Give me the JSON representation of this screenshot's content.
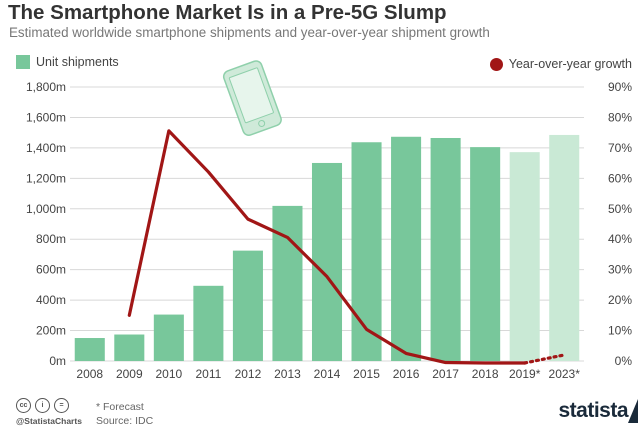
{
  "header": {
    "title": "The Smartphone Market Is in a Pre-5G Slump",
    "subtitle": "Estimated worldwide smartphone shipments and year-over-year shipment growth"
  },
  "legend": {
    "bar_label": "Unit shipments",
    "line_label": "Year-over-year growth"
  },
  "colors": {
    "bar": "#78c79b",
    "bar_forecast": "#c9e9d5",
    "line": "#a11616",
    "grid": "#d8d8d8"
  },
  "chart_data": {
    "type": "bar+line",
    "categories": [
      "2008",
      "2009",
      "2010",
      "2011",
      "2012",
      "2013",
      "2014",
      "2015",
      "2016",
      "2017",
      "2018",
      "2019*",
      "2023*"
    ],
    "forecast": [
      false,
      false,
      false,
      false,
      false,
      false,
      false,
      false,
      false,
      false,
      false,
      true,
      true
    ],
    "series": [
      {
        "name": "Unit shipments",
        "axis": "left",
        "unit": "m",
        "values": [
          151,
          174,
          305,
          494,
          725,
          1019,
          1301,
          1437,
          1473,
          1465,
          1405,
          1372,
          1485
        ]
      },
      {
        "name": "Year-over-year growth",
        "axis": "right",
        "unit": "%",
        "values": [
          null,
          15,
          75.6,
          62.1,
          46.6,
          40.6,
          27.7,
          10.4,
          2.5,
          -0.5,
          -4.1,
          -2.3,
          2
        ]
      }
    ],
    "left_axis": {
      "ticks": [
        "0m",
        "200m",
        "400m",
        "600m",
        "800m",
        "1,000m",
        "1,200m",
        "1,400m",
        "1,600m",
        "1,800m"
      ],
      "range": [
        0,
        1800
      ]
    },
    "right_axis": {
      "ticks": [
        "0%",
        "10%",
        "20%",
        "30%",
        "40%",
        "50%",
        "60%",
        "70%",
        "80%",
        "90%"
      ],
      "range": [
        0,
        90
      ]
    }
  },
  "footer": {
    "cc_glyphs": [
      "cc",
      "i",
      "="
    ],
    "handle": "@StatistaCharts",
    "forecast_note": "* Forecast",
    "source": "Source: IDC",
    "brand": "statista"
  }
}
